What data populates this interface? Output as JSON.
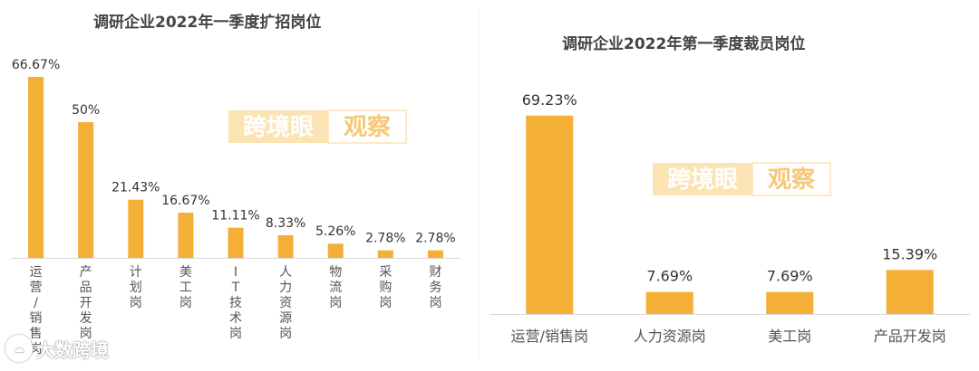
{
  "colors": {
    "bar": "#F4AF37",
    "watermark_light": "#FBE3B4",
    "watermark_dark": "#F7C87A",
    "axis": "#d9d9d9",
    "label": "#333333",
    "category": "#555555"
  },
  "watermark": {
    "part1": "跨境眼",
    "part2": "观察"
  },
  "source_mark": {
    "icon": "cloud-logo-icon",
    "text": "大数跨境"
  },
  "chart_data": [
    {
      "type": "bar",
      "title": "调研企业2022年一季度扩招岗位",
      "categories": [
        "运营/销售岗",
        "产品开发岗",
        "计划岗",
        "美工岗",
        "IT技术岗",
        "人力资源岗",
        "物流岗",
        "采购岗",
        "财务岗"
      ],
      "values": [
        66.67,
        50,
        21.43,
        16.67,
        11.11,
        8.33,
        5.26,
        2.78,
        2.78
      ],
      "data_labels": [
        "66.67%",
        "50%",
        "21.43%",
        "16.67%",
        "11.11%",
        "8.33%",
        "5.26%",
        "2.78%",
        "2.78%"
      ],
      "xlabel": "",
      "ylabel": "",
      "ylim": [
        0,
        70
      ],
      "grid": false,
      "category_label_orientation": "vertical"
    },
    {
      "type": "bar",
      "title": "调研企业2022年第一季度裁员岗位",
      "categories": [
        "运营/销售岗",
        "人力资源岗",
        "美工岗",
        "产品开发岗"
      ],
      "values": [
        69.23,
        7.69,
        7.69,
        15.39
      ],
      "data_labels": [
        "69.23%",
        "7.69%",
        "7.69%",
        "15.39%"
      ],
      "xlabel": "",
      "ylabel": "",
      "ylim": [
        0,
        72
      ],
      "grid": false,
      "category_label_orientation": "horizontal"
    }
  ]
}
